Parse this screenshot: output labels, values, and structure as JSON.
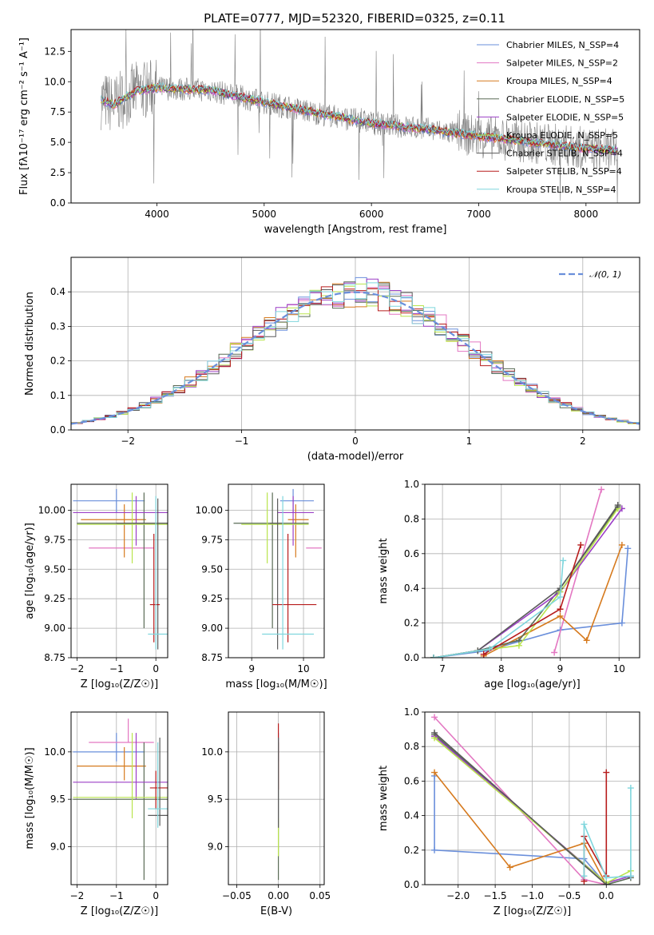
{
  "figure": {
    "title": "PLATE=0777, MJD=52320, FIBERID=0325, z=0.11"
  },
  "colors": [
    "#6a8fdb",
    "#e377c2",
    "#d67a1e",
    "#5a6b56",
    "#9b3fc6",
    "#b9e44c",
    "#5a5a5a",
    "#b71c1c",
    "#7fd6dd"
  ],
  "chart_data": [
    {
      "id": "spectrum",
      "type": "line",
      "xlabel": "wavelength [Angstrom, rest frame]",
      "ylabel": "Flux [fλ10⁻¹⁷ erg cm⁻² s⁻¹ A⁻¹]",
      "xlim": [
        3200,
        8500
      ],
      "ylim": [
        0,
        14.3
      ],
      "xticks": [
        4000,
        5000,
        6000,
        7000,
        8000
      ],
      "yticks": [
        0.0,
        2.5,
        5.0,
        7.5,
        10.0,
        12.5
      ],
      "grid": false,
      "legend": "top-right",
      "data_color": "#808080",
      "legend_entries": [
        "Chabrier MILES, N_SSP=4",
        "Salpeter MILES, N_SSP=2",
        "Kroupa MILES, N_SSP=4",
        "Chabrier ELODIE, N_SSP=5",
        "Salpeter ELODIE, N_SSP=5",
        "Kroupa ELODIE, N_SSP=5",
        "Chabrier STELIB, N_SSP=4",
        "Salpeter STELIB, N_SSP=4",
        "Kroupa STELIB, N_SSP=4"
      ],
      "continuum": {
        "x": [
          3480,
          3600,
          3800,
          4000,
          4200,
          4500,
          5000,
          5500,
          6000,
          6500,
          7000,
          7500,
          8000,
          8300
        ],
        "y": [
          8.5,
          8.1,
          9.2,
          9.5,
          9.4,
          9.3,
          8.3,
          7.4,
          6.6,
          6.1,
          5.5,
          5.0,
          4.5,
          4.3
        ]
      }
    },
    {
      "id": "residuals",
      "type": "line",
      "xlabel": "(data-model)/error",
      "ylabel": "Normed distribution",
      "xlim": [
        -2.5,
        2.5
      ],
      "ylim": [
        0,
        0.5
      ],
      "xticks": [
        -2,
        -1,
        0,
        1,
        2
      ],
      "yticks": [
        0.0,
        0.1,
        0.2,
        0.3,
        0.4
      ],
      "grid": true,
      "legend": "top-right",
      "legend_entries": [
        "𝒩(0, 1)"
      ],
      "gaussian": {
        "mean": 0,
        "sigma": 1,
        "color": "#6a8fdb"
      },
      "bin_width": 0.1
    },
    {
      "id": "age_vs_Z",
      "type": "scatter",
      "xlabel": "Z [log₁₀(Z/Z☉)]",
      "ylabel": "age  [log₁₀(age/yr)]",
      "xlim": [
        -2.15,
        0.3
      ],
      "ylim": [
        8.75,
        10.22
      ],
      "xticks": [
        -2,
        -1,
        0
      ],
      "yticks": [
        8.75,
        9.0,
        9.25,
        9.5,
        9.75,
        10.0
      ],
      "grid": true,
      "points": [
        {
          "s": 0,
          "x": -1.0,
          "y": 10.08,
          "xe": [
            -2.1,
            -0.28
          ],
          "ye": [
            9.98,
            10.18
          ]
        },
        {
          "s": 1,
          "x": -1.2,
          "y": 9.68,
          "xe": [
            -1.7,
            -0.05
          ],
          "ye": [
            9.68,
            9.68
          ]
        },
        {
          "s": 2,
          "x": -0.8,
          "y": 9.92,
          "xe": [
            -1.9,
            -0.25
          ],
          "ye": [
            9.6,
            10.05
          ]
        },
        {
          "s": 3,
          "x": -0.3,
          "y": 9.89,
          "xe": [
            -2.0,
            0.3
          ],
          "ye": [
            9.0,
            10.15
          ]
        },
        {
          "s": 4,
          "x": -0.5,
          "y": 9.98,
          "xe": [
            -2.1,
            0.3
          ],
          "ye": [
            9.7,
            10.12
          ]
        },
        {
          "s": 5,
          "x": -0.6,
          "y": 9.88,
          "xe": [
            -2.0,
            0.3
          ],
          "ye": [
            9.55,
            10.15
          ]
        },
        {
          "s": 6,
          "x": 0.05,
          "y": 9.89,
          "xe": [
            -1.0,
            0.3
          ],
          "ye": [
            8.82,
            10.1
          ]
        },
        {
          "s": 7,
          "x": -0.05,
          "y": 9.2,
          "xe": [
            -0.15,
            0.1
          ],
          "ye": [
            8.88,
            9.8
          ]
        },
        {
          "s": 8,
          "x": 0.0,
          "y": 8.95,
          "xe": [
            -0.2,
            0.3
          ],
          "ye": [
            8.82,
            10.12
          ]
        }
      ]
    },
    {
      "id": "age_vs_mass",
      "type": "scatter",
      "xlabel": "mass [log₁₀(M/M☉)]",
      "ylabel": "",
      "xlim": [
        8.55,
        10.4
      ],
      "ylim": [
        8.75,
        10.22
      ],
      "xticks": [
        9,
        10
      ],
      "yticks": [
        8.75,
        9.0,
        9.25,
        9.5,
        9.75,
        10.0
      ],
      "grid": true,
      "points": [
        {
          "s": 0,
          "x": 9.8,
          "y": 10.08,
          "xe": [
            9.55,
            10.2
          ],
          "ye": [
            9.98,
            10.18
          ]
        },
        {
          "s": 1,
          "x": 10.1,
          "y": 9.68,
          "xe": [
            10.05,
            10.35
          ],
          "ye": [
            9.68,
            9.68
          ]
        },
        {
          "s": 2,
          "x": 9.85,
          "y": 9.92,
          "xe": [
            9.7,
            10.1
          ],
          "ye": [
            9.6,
            10.05
          ]
        },
        {
          "s": 3,
          "x": 9.4,
          "y": 9.89,
          "xe": [
            8.65,
            10.1
          ],
          "ye": [
            9.0,
            10.15
          ]
        },
        {
          "s": 4,
          "x": 9.8,
          "y": 9.98,
          "xe": [
            9.5,
            10.2
          ],
          "ye": [
            9.7,
            10.12
          ]
        },
        {
          "s": 5,
          "x": 9.3,
          "y": 9.88,
          "xe": [
            8.8,
            10.1
          ],
          "ye": [
            9.55,
            10.15
          ]
        },
        {
          "s": 6,
          "x": 9.5,
          "y": 9.89,
          "xe": [
            9.35,
            9.6
          ],
          "ye": [
            8.82,
            10.1
          ]
        },
        {
          "s": 7,
          "x": 9.7,
          "y": 9.2,
          "xe": [
            9.4,
            10.25
          ],
          "ye": [
            8.88,
            9.8
          ]
        },
        {
          "s": 8,
          "x": 9.6,
          "y": 8.95,
          "xe": [
            9.2,
            10.2
          ],
          "ye": [
            8.82,
            10.12
          ]
        }
      ]
    },
    {
      "id": "massweight_vs_age",
      "type": "line",
      "xlabel": "age  [log₁₀(age/yr)]",
      "ylabel": "mass weight",
      "xlim": [
        6.7,
        10.35
      ],
      "ylim": [
        0.0,
        1.0
      ],
      "xticks": [
        7,
        8,
        9,
        10
      ],
      "yticks": [
        0.0,
        0.2,
        0.4,
        0.6,
        0.8,
        1.0
      ],
      "grid": true,
      "series": [
        {
          "s": 0,
          "x": [
            6.85,
            7.75,
            9.0,
            10.05,
            10.15
          ],
          "y": [
            0.0,
            0.04,
            0.16,
            0.2,
            0.63
          ]
        },
        {
          "s": 1,
          "x": [
            8.9,
            9.7
          ],
          "y": [
            0.03,
            0.97
          ]
        },
        {
          "s": 2,
          "x": [
            7.7,
            9.0,
            9.45,
            10.05
          ],
          "y": [
            0.01,
            0.24,
            0.1,
            0.65
          ]
        },
        {
          "s": 3,
          "x": [
            6.85,
            7.6,
            8.3,
            9.0,
            9.98
          ],
          "y": [
            0.0,
            0.04,
            0.1,
            0.4,
            0.87
          ]
        },
        {
          "s": 4,
          "x": [
            6.85,
            7.6,
            9.0,
            10.05
          ],
          "y": [
            0.0,
            0.04,
            0.38,
            0.86
          ]
        },
        {
          "s": 5,
          "x": [
            6.85,
            7.6,
            8.3,
            9.0,
            9.98
          ],
          "y": [
            0.0,
            0.04,
            0.07,
            0.38,
            0.86
          ]
        },
        {
          "s": 6,
          "x": [
            6.85,
            7.6,
            9.0,
            9.98
          ],
          "y": [
            0.0,
            0.04,
            0.4,
            0.88
          ]
        },
        {
          "s": 7,
          "x": [
            7.7,
            9.0,
            9.35
          ],
          "y": [
            0.02,
            0.28,
            0.65
          ]
        },
        {
          "s": 8,
          "x": [
            6.85,
            7.8,
            9.0,
            9.05
          ],
          "y": [
            0.0,
            0.05,
            0.35,
            0.56
          ]
        }
      ]
    },
    {
      "id": "mass_vs_Z",
      "type": "scatter",
      "xlabel": "Z [log₁₀(Z/Z☉)]",
      "ylabel": "mass [log₁₀(M/M☉)]",
      "xlim": [
        -2.15,
        0.3
      ],
      "ylim": [
        8.6,
        10.42
      ],
      "xticks": [
        -2,
        -1,
        0
      ],
      "yticks": [
        9.0,
        9.5,
        10.0
      ],
      "grid": true,
      "points": [
        {
          "s": 0,
          "x": -1.0,
          "y": 10.0,
          "xe": [
            -2.1,
            -0.28
          ],
          "ye": [
            9.9,
            10.2
          ]
        },
        {
          "s": 1,
          "x": -0.7,
          "y": 10.1,
          "xe": [
            -1.7,
            -0.05
          ],
          "ye": [
            10.1,
            10.35
          ]
        },
        {
          "s": 2,
          "x": -0.8,
          "y": 9.85,
          "xe": [
            -2.0,
            -0.25
          ],
          "ye": [
            9.7,
            10.05
          ]
        },
        {
          "s": 3,
          "x": -0.3,
          "y": 9.5,
          "xe": [
            -2.1,
            0.3
          ],
          "ye": [
            8.65,
            10.1
          ]
        },
        {
          "s": 4,
          "x": -0.5,
          "y": 9.68,
          "xe": [
            -2.1,
            0.3
          ],
          "ye": [
            9.5,
            10.2
          ]
        },
        {
          "s": 5,
          "x": -0.6,
          "y": 9.52,
          "xe": [
            -2.1,
            0.3
          ],
          "ye": [
            9.3,
            10.2
          ]
        },
        {
          "s": 6,
          "x": 0.1,
          "y": 9.33,
          "xe": [
            -0.2,
            0.3
          ],
          "ye": [
            9.22,
            10.15
          ]
        },
        {
          "s": 7,
          "x": 0.0,
          "y": 9.62,
          "xe": [
            -0.15,
            0.3
          ],
          "ye": [
            9.4,
            9.8
          ]
        },
        {
          "s": 8,
          "x": 0.05,
          "y": 9.4,
          "xe": [
            -0.2,
            0.3
          ],
          "ye": [
            9.2,
            10.1
          ]
        }
      ]
    },
    {
      "id": "mass_vs_ebv",
      "type": "scatter",
      "xlabel": "E(B-V)",
      "ylabel": "",
      "xlim": [
        -0.06,
        0.055
      ],
      "ylim": [
        8.6,
        10.42
      ],
      "xticks": [
        -0.05,
        0.0,
        0.05
      ],
      "yticks": [
        9.0,
        9.5,
        10.0
      ],
      "grid": true,
      "points": [
        {
          "s": 0,
          "x": 0.0,
          "y": 10.0,
          "xe": [
            0,
            0
          ],
          "ye": [
            9.9,
            10.2
          ]
        },
        {
          "s": 3,
          "x": 0.0,
          "y": 9.5,
          "xe": [
            0,
            0
          ],
          "ye": [
            8.65,
            10.1
          ]
        },
        {
          "s": 7,
          "x": 0.0,
          "y": 10.15,
          "xe": [
            0,
            0
          ],
          "ye": [
            9.6,
            10.3
          ]
        },
        {
          "s": 5,
          "x": 0.0,
          "y": 9.1,
          "xe": [
            0,
            0
          ],
          "ye": [
            8.9,
            9.3
          ]
        },
        {
          "s": 6,
          "x": 0.0,
          "y": 9.25,
          "xe": [
            0,
            0
          ],
          "ye": [
            9.2,
            10.15
          ]
        }
      ]
    },
    {
      "id": "massweight_vs_Z",
      "type": "line",
      "xlabel": "Z [log₁₀(Z/Z☉)]",
      "ylabel": "mass weight",
      "xlim": [
        -2.45,
        0.45
      ],
      "ylim": [
        0.0,
        1.0
      ],
      "xticks": [
        -2.0,
        -1.5,
        -1.0,
        -0.5,
        0.0
      ],
      "grid": true,
      "series": [
        {
          "s": 0,
          "x": [
            -2.32,
            -2.32,
            -0.3,
            0.0
          ],
          "y": [
            0.63,
            0.2,
            0.15,
            0.0
          ]
        },
        {
          "s": 1,
          "x": [
            -2.32,
            -0.3,
            0.0
          ],
          "y": [
            0.97,
            0.03,
            0.0
          ]
        },
        {
          "s": 2,
          "x": [
            -2.32,
            -1.3,
            -0.3,
            0.0
          ],
          "y": [
            0.65,
            0.1,
            0.24,
            0.0
          ]
        },
        {
          "s": 3,
          "x": [
            -2.32,
            0.0,
            0.33
          ],
          "y": [
            0.87,
            0.0,
            0.04
          ]
        },
        {
          "s": 4,
          "x": [
            -2.32,
            0.0,
            0.33
          ],
          "y": [
            0.86,
            0.01,
            0.05
          ]
        },
        {
          "s": 5,
          "x": [
            -2.32,
            0.0,
            0.33
          ],
          "y": [
            0.85,
            0.01,
            0.08
          ]
        },
        {
          "s": 6,
          "x": [
            -2.32,
            0.0
          ],
          "y": [
            0.88,
            0.0
          ]
        },
        {
          "s": 7,
          "x": [
            -0.3,
            -0.3,
            0.0,
            0.0
          ],
          "y": [
            0.02,
            0.28,
            0.05,
            0.65
          ]
        },
        {
          "s": 8,
          "x": [
            -0.3,
            -0.3,
            0.0,
            0.33,
            0.33
          ],
          "y": [
            0.05,
            0.35,
            0.04,
            0.05,
            0.56
          ]
        }
      ]
    }
  ]
}
